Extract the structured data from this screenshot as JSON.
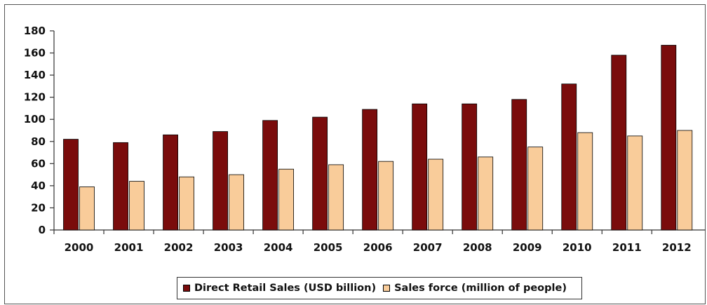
{
  "chart_data": {
    "type": "bar",
    "categories": [
      "2000",
      "2001",
      "2002",
      "2003",
      "2004",
      "2005",
      "2006",
      "2007",
      "2008",
      "2009",
      "2010",
      "2011",
      "2012"
    ],
    "series": [
      {
        "name": "Direct Retail Sales (USD billion)",
        "color": "#7a0c0c",
        "values": [
          82,
          79,
          86,
          89,
          99,
          102,
          109,
          114,
          114,
          118,
          132,
          158,
          167
        ]
      },
      {
        "name": "Sales force (million of people)",
        "color": "#f9cc9a",
        "values": [
          39,
          44,
          48,
          50,
          55,
          59,
          62,
          64,
          66,
          75,
          88,
          85,
          90
        ]
      }
    ],
    "ylim": [
      0,
      180
    ],
    "yticks": [
      0,
      20,
      40,
      60,
      80,
      100,
      120,
      140,
      160,
      180
    ],
    "grid": false,
    "legend_position": "bottom",
    "title": "",
    "xlabel": "",
    "ylabel": ""
  }
}
